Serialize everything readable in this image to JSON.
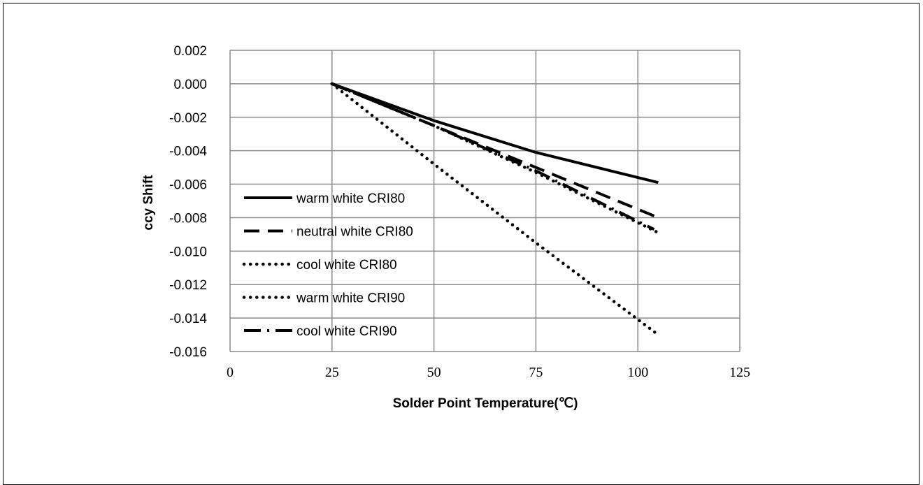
{
  "chart_data": {
    "type": "line",
    "title": "",
    "xlabel": "Solder Point Temperature(℃)",
    "ylabel": "ccy Shift",
    "xlim": [
      0,
      125
    ],
    "ylim": [
      -0.016,
      0.002
    ],
    "x_ticks": [
      0,
      25,
      50,
      75,
      100,
      125
    ],
    "y_ticks": [
      0.002,
      0.0,
      -0.002,
      -0.004,
      -0.006,
      -0.008,
      -0.01,
      -0.012,
      -0.014,
      -0.016
    ],
    "x_tick_labels": [
      "0",
      "25",
      "50",
      "75",
      "100",
      "125"
    ],
    "y_tick_labels": [
      "0.002",
      "0.000",
      "-0.002",
      "-0.004",
      "-0.006",
      "-0.008",
      "-0.010",
      "-0.012",
      "-0.014",
      "-0.016"
    ],
    "grid": true,
    "legend_position": "left",
    "series": [
      {
        "name": "warm white CRI80",
        "style": "solid",
        "x": [
          25,
          50,
          75,
          105
        ],
        "y": [
          0.0,
          -0.0022,
          -0.0041,
          -0.0059
        ]
      },
      {
        "name": "neutral white CRI80",
        "style": "dashed",
        "x": [
          25,
          50,
          75,
          105
        ],
        "y": [
          0.0,
          -0.0025,
          -0.005,
          -0.008
        ]
      },
      {
        "name": "cool white CRI80",
        "style": "dotted",
        "x": [
          25,
          50,
          75,
          105
        ],
        "y": [
          0.0,
          -0.0025,
          -0.0053,
          -0.0089
        ]
      },
      {
        "name": "warm white CRI90",
        "style": "dotted",
        "x": [
          25,
          50,
          75,
          105
        ],
        "y": [
          0.0,
          -0.0048,
          -0.0095,
          -0.015
        ]
      },
      {
        "name": "cool white CRI90",
        "style": "dash-dot",
        "x": [
          25,
          50,
          75,
          104
        ],
        "y": [
          0.0,
          -0.0025,
          -0.0052,
          -0.0087
        ]
      }
    ]
  }
}
